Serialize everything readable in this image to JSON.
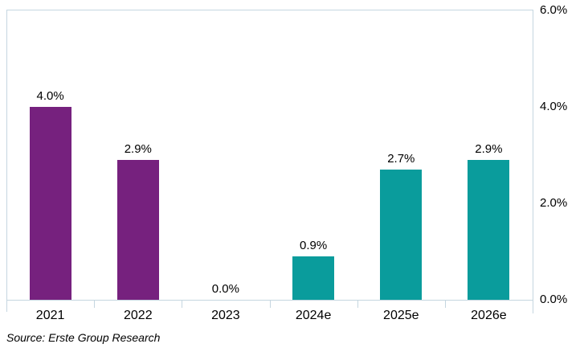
{
  "colors": {
    "purple": "#76217E",
    "teal": "#0A9C9C",
    "plot_border": "#C5D6E0",
    "text": "#000000",
    "background": "#FFFFFF"
  },
  "chart_data": {
    "type": "bar",
    "categories": [
      "2021",
      "2022",
      "2023",
      "2024e",
      "2025e",
      "2026e"
    ],
    "values": [
      4.0,
      2.9,
      0.0,
      0.9,
      2.7,
      2.9
    ],
    "data_labels": [
      "4.0%",
      "2.9%",
      "0.0%",
      "0.9%",
      "2.7%",
      "2.9%"
    ],
    "series_colors": [
      "#76217E",
      "#76217E",
      "#76217E",
      "#0A9C9C",
      "#0A9C9C",
      "#0A9C9C"
    ],
    "title": "",
    "xlabel": "",
    "ylabel": "",
    "ylim": [
      0,
      6
    ],
    "ytick_values": [
      0,
      2,
      4,
      6
    ],
    "ytick_labels": [
      "0.0%",
      "2.0%",
      "4.0%",
      "6.0%"
    ],
    "yaxis_position": "right",
    "grid": false,
    "legend": false
  },
  "footer": {
    "source": "Source: Erste Group Research"
  }
}
